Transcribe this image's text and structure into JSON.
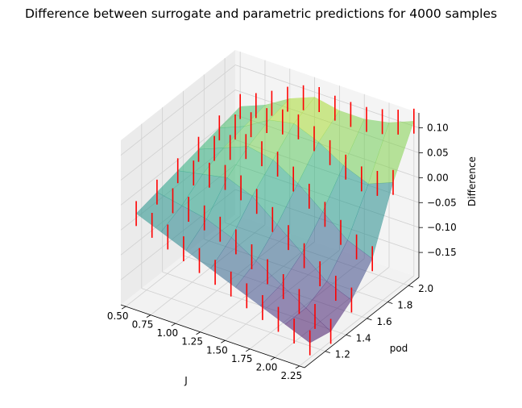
{
  "chart_data": {
    "type": "surface3d",
    "title": "Difference between surrogate and parametric predictions for 4000 samples",
    "xlabel": "J",
    "ylabel": "pod",
    "zlabel": "Difference",
    "xlim": [
      0.45,
      2.3
    ],
    "ylim": [
      1.0,
      2.1
    ],
    "zlim": [
      -0.2,
      0.13
    ],
    "x_ticks": [
      "0.50",
      "0.75",
      "1.00",
      "1.25",
      "1.50",
      "1.75",
      "2.00",
      "2.25"
    ],
    "y_ticks": [
      "1.2",
      "1.4",
      "1.6",
      "1.8",
      "2.0"
    ],
    "z_ticks": [
      "−0.15",
      "−0.10",
      "−0.05",
      "0.00",
      "0.05",
      "0.10"
    ],
    "x_grid": [
      0.5,
      0.75,
      1.0,
      1.25,
      1.5,
      1.75,
      2.0,
      2.25
    ],
    "y_grid": [
      1.1,
      1.3,
      1.5,
      1.7,
      1.9,
      2.1
    ],
    "surface_z": [
      [
        -0.03,
        -0.02,
        -0.01,
        0.0,
        0.01,
        0.02
      ],
      [
        -0.05,
        -0.03,
        0.0,
        0.02,
        0.03,
        0.04
      ],
      [
        -0.07,
        -0.04,
        0.01,
        0.04,
        0.06,
        0.07
      ],
      [
        -0.09,
        -0.06,
        -0.01,
        0.03,
        0.07,
        0.09
      ],
      [
        -0.11,
        -0.09,
        -0.05,
        0.0,
        0.05,
        0.08
      ],
      [
        -0.13,
        -0.12,
        -0.09,
        -0.04,
        0.02,
        0.08
      ],
      [
        -0.15,
        -0.15,
        -0.13,
        -0.08,
        0.0,
        0.09
      ],
      [
        -0.17,
        -0.18,
        -0.15,
        -0.1,
        0.02,
        0.11
      ]
    ],
    "error_bar_halfwidth": 0.025,
    "colormap": "viridis",
    "surface_alpha": 0.55,
    "error_bar_color": "#ff0000",
    "grid": true
  }
}
